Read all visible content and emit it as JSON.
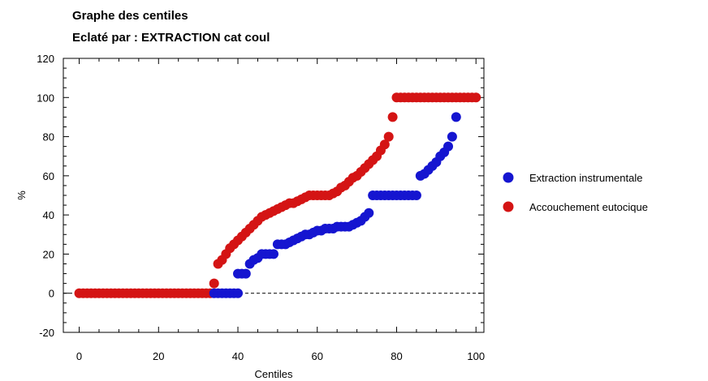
{
  "chart_data": {
    "type": "scatter",
    "title": "Graphe des centiles",
    "subtitle": "Eclaté par : EXTRACTION cat coul",
    "xlabel": "Centiles",
    "ylabel": "%",
    "xlim": [
      -4,
      102
    ],
    "ylim": [
      -20,
      120
    ],
    "xticks": [
      "0",
      "20",
      "40",
      "60",
      "80",
      "100"
    ],
    "yticks": [
      "-20",
      "0",
      "20",
      "40",
      "60",
      "80",
      "100",
      "120"
    ],
    "reference_line": {
      "y": 0,
      "style": "dashed"
    },
    "grid": false,
    "legend_position": "right",
    "series": [
      {
        "name": "Extraction instrumentale",
        "color": "#1515d0",
        "points": [
          [
            34,
            0
          ],
          [
            35,
            0
          ],
          [
            36,
            0
          ],
          [
            37,
            0
          ],
          [
            38,
            0
          ],
          [
            39,
            0
          ],
          [
            40,
            0
          ],
          [
            40,
            10
          ],
          [
            41,
            10
          ],
          [
            42,
            10
          ],
          [
            43,
            15
          ],
          [
            44,
            17
          ],
          [
            45,
            18
          ],
          [
            46,
            20
          ],
          [
            47,
            20
          ],
          [
            48,
            20
          ],
          [
            49,
            20
          ],
          [
            50,
            25
          ],
          [
            51,
            25
          ],
          [
            52,
            25
          ],
          [
            53,
            26
          ],
          [
            54,
            27
          ],
          [
            55,
            28
          ],
          [
            56,
            29
          ],
          [
            57,
            30
          ],
          [
            58,
            30
          ],
          [
            59,
            31
          ],
          [
            60,
            32
          ],
          [
            61,
            32
          ],
          [
            62,
            33
          ],
          [
            63,
            33
          ],
          [
            64,
            33
          ],
          [
            65,
            34
          ],
          [
            66,
            34
          ],
          [
            67,
            34
          ],
          [
            68,
            34
          ],
          [
            69,
            35
          ],
          [
            70,
            36
          ],
          [
            71,
            37
          ],
          [
            72,
            39
          ],
          [
            73,
            41
          ],
          [
            74,
            50
          ],
          [
            75,
            50
          ],
          [
            76,
            50
          ],
          [
            77,
            50
          ],
          [
            78,
            50
          ],
          [
            79,
            50
          ],
          [
            80,
            50
          ],
          [
            81,
            50
          ],
          [
            82,
            50
          ],
          [
            83,
            50
          ],
          [
            84,
            50
          ],
          [
            85,
            50
          ],
          [
            86,
            60
          ],
          [
            87,
            61
          ],
          [
            88,
            63
          ],
          [
            89,
            65
          ],
          [
            90,
            67
          ],
          [
            91,
            70
          ],
          [
            92,
            72
          ],
          [
            93,
            75
          ],
          [
            94,
            80
          ],
          [
            95,
            90
          ]
        ]
      },
      {
        "name": "Accouchement eutocique",
        "color": "#d41414",
        "points": [
          [
            0,
            0
          ],
          [
            1,
            0
          ],
          [
            2,
            0
          ],
          [
            3,
            0
          ],
          [
            4,
            0
          ],
          [
            5,
            0
          ],
          [
            6,
            0
          ],
          [
            7,
            0
          ],
          [
            8,
            0
          ],
          [
            9,
            0
          ],
          [
            10,
            0
          ],
          [
            11,
            0
          ],
          [
            12,
            0
          ],
          [
            13,
            0
          ],
          [
            14,
            0
          ],
          [
            15,
            0
          ],
          [
            16,
            0
          ],
          [
            17,
            0
          ],
          [
            18,
            0
          ],
          [
            19,
            0
          ],
          [
            20,
            0
          ],
          [
            21,
            0
          ],
          [
            22,
            0
          ],
          [
            23,
            0
          ],
          [
            24,
            0
          ],
          [
            25,
            0
          ],
          [
            26,
            0
          ],
          [
            27,
            0
          ],
          [
            28,
            0
          ],
          [
            29,
            0
          ],
          [
            30,
            0
          ],
          [
            31,
            0
          ],
          [
            32,
            0
          ],
          [
            33,
            0
          ],
          [
            34,
            5
          ],
          [
            35,
            15
          ],
          [
            36,
            17
          ],
          [
            37,
            20
          ],
          [
            38,
            23
          ],
          [
            39,
            25
          ],
          [
            40,
            27
          ],
          [
            41,
            29
          ],
          [
            42,
            31
          ],
          [
            43,
            33
          ],
          [
            44,
            35
          ],
          [
            45,
            37
          ],
          [
            46,
            39
          ],
          [
            47,
            40
          ],
          [
            48,
            41
          ],
          [
            49,
            42
          ],
          [
            50,
            43
          ],
          [
            51,
            44
          ],
          [
            52,
            45
          ],
          [
            53,
            46
          ],
          [
            54,
            46
          ],
          [
            55,
            47
          ],
          [
            56,
            48
          ],
          [
            57,
            49
          ],
          [
            58,
            50
          ],
          [
            59,
            50
          ],
          [
            60,
            50
          ],
          [
            61,
            50
          ],
          [
            62,
            50
          ],
          [
            63,
            50
          ],
          [
            64,
            51
          ],
          [
            65,
            52
          ],
          [
            66,
            54
          ],
          [
            67,
            55
          ],
          [
            68,
            57
          ],
          [
            69,
            59
          ],
          [
            70,
            60
          ],
          [
            71,
            62
          ],
          [
            72,
            64
          ],
          [
            73,
            66
          ],
          [
            74,
            68
          ],
          [
            75,
            70
          ],
          [
            76,
            73
          ],
          [
            77,
            76
          ],
          [
            78,
            80
          ],
          [
            79,
            90
          ],
          [
            80,
            100
          ],
          [
            81,
            100
          ],
          [
            82,
            100
          ],
          [
            83,
            100
          ],
          [
            84,
            100
          ],
          [
            85,
            100
          ],
          [
            86,
            100
          ],
          [
            87,
            100
          ],
          [
            88,
            100
          ],
          [
            89,
            100
          ],
          [
            90,
            100
          ],
          [
            91,
            100
          ],
          [
            92,
            100
          ],
          [
            93,
            100
          ],
          [
            94,
            100
          ],
          [
            95,
            100
          ],
          [
            96,
            100
          ],
          [
            97,
            100
          ],
          [
            98,
            100
          ],
          [
            99,
            100
          ],
          [
            100,
            100
          ]
        ]
      }
    ]
  }
}
